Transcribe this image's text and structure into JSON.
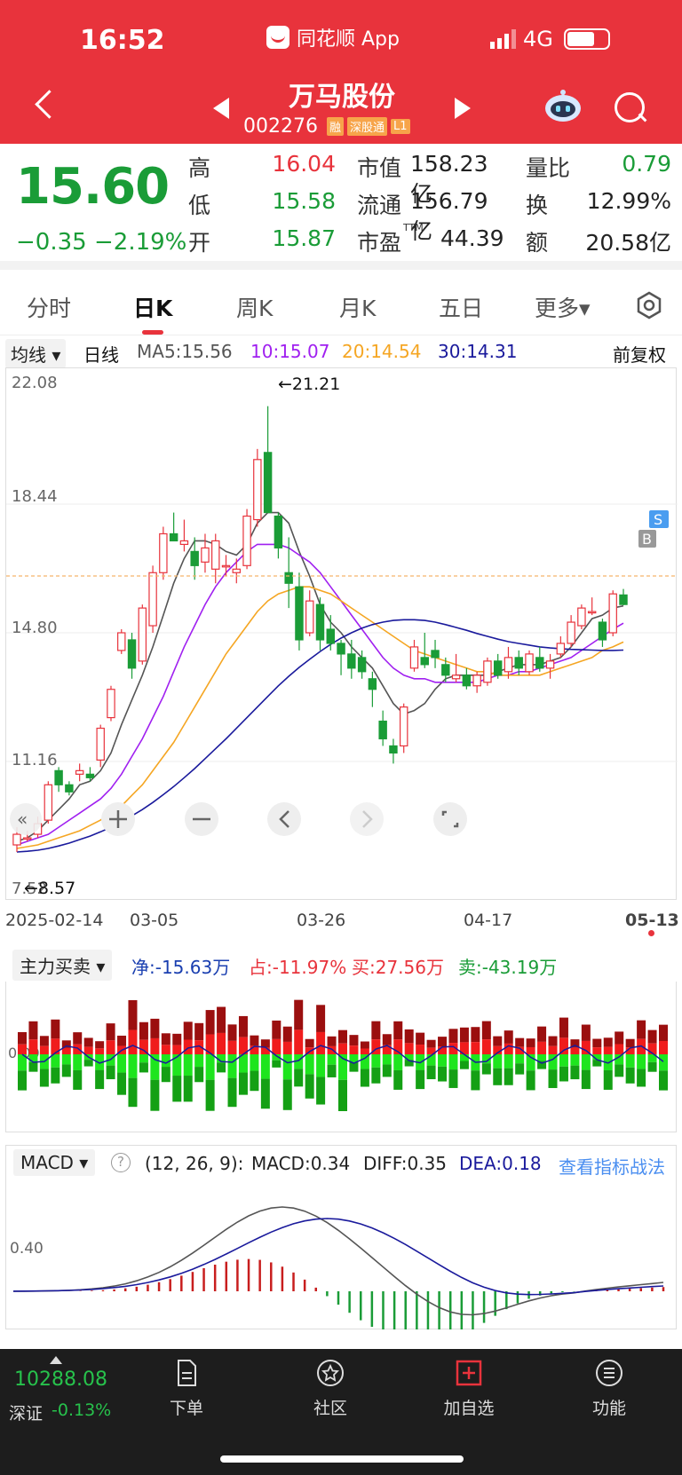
{
  "status": {
    "time": "16:52",
    "app": "同花顺 App",
    "network": "4G"
  },
  "stock": {
    "name": "万马股份",
    "code": "002276",
    "tags": [
      "融",
      "深股通",
      "L1"
    ]
  },
  "quote": {
    "price": "15.60",
    "change": "−0.35",
    "change_pct": "−2.19%",
    "high_label": "高",
    "high": "16.04",
    "low_label": "低",
    "low": "15.58",
    "open_label": "开",
    "open": "15.87",
    "mcap_label": "市值",
    "mcap": "158.23亿",
    "float_label": "流通",
    "float": "156.79亿",
    "pe_label": "市盈",
    "pe_sup": "TTM",
    "pe": "44.39",
    "vr_label": "量比",
    "vr": "0.79",
    "turn_label": "换",
    "turn": "12.99%",
    "amt_label": "额",
    "amt": "20.58亿"
  },
  "tabs": [
    "分时",
    "日K",
    "周K",
    "月K",
    "五日",
    "更多▾"
  ],
  "active_tab": "日K",
  "ma": {
    "selector": "均线 ▾",
    "period": "日线",
    "ma5": "MA5:15.56",
    "ma10": "10:15.07",
    "ma20": "20:14.54",
    "ma30": "30:14.31",
    "adjust": "前复权"
  },
  "kline": {
    "y_labels": [
      "22.08",
      "18.44",
      "14.80",
      "11.16",
      "7.52"
    ],
    "max_note": "←21.21",
    "min_note": "←8.57",
    "markers": [
      "B",
      "S"
    ],
    "dates": [
      "2025-02-14",
      "03-05",
      "03-26",
      "04-17",
      "05-13"
    ]
  },
  "flow": {
    "selector": "主力买卖 ▾",
    "net": "净:-15.63万",
    "share": "占:-11.97%",
    "buy": "买:27.56万",
    "sell": "卖:-43.19万",
    "axis": "0.00"
  },
  "macd": {
    "selector": "MACD ▾",
    "params": "(12, 26, 9):",
    "macd": "MACD:0.34",
    "diff": "DIFF:0.35",
    "dea": "DEA:0.18",
    "link": "查看指标战法",
    "axis": "0.40"
  },
  "bottom": {
    "index_value": "10288.08",
    "index_name": "深证",
    "index_change": "-0.13%",
    "buttons": [
      "下单",
      "社区",
      "加自选",
      "功能"
    ]
  },
  "colors": {
    "up": "#e8333c",
    "down": "#1a9c37",
    "header": "#e8333c",
    "ma5": "#555555",
    "ma10": "#a020f0",
    "ma20": "#f5a623",
    "ma30": "#1a1a9c"
  },
  "chart_data": {
    "type": "candlestick",
    "ylim": [
      7.52,
      22.08
    ],
    "candles": [
      [
        8.8,
        9.3,
        8.6,
        9.1
      ],
      [
        9.0,
        9.2,
        8.9,
        9.0
      ],
      [
        9.1,
        9.6,
        9.0,
        9.4
      ],
      [
        9.5,
        10.6,
        9.4,
        10.5
      ],
      [
        10.9,
        11.0,
        10.3,
        10.5
      ],
      [
        10.5,
        10.6,
        10.2,
        10.3
      ],
      [
        10.8,
        11.1,
        10.6,
        10.9
      ],
      [
        10.8,
        11.0,
        10.6,
        10.7
      ],
      [
        11.2,
        12.2,
        11.0,
        12.1
      ],
      [
        12.4,
        13.3,
        12.3,
        13.2
      ],
      [
        14.3,
        14.9,
        14.2,
        14.8
      ],
      [
        14.6,
        14.8,
        13.5,
        13.8
      ],
      [
        14.0,
        15.6,
        13.9,
        15.5
      ],
      [
        15.0,
        16.7,
        14.8,
        16.5
      ],
      [
        16.5,
        17.8,
        16.3,
        17.6
      ],
      [
        17.6,
        18.2,
        17.4,
        17.4
      ],
      [
        17.3,
        18.0,
        17.1,
        17.4
      ],
      [
        17.1,
        17.5,
        16.3,
        16.7
      ],
      [
        16.8,
        17.6,
        16.5,
        17.2
      ],
      [
        16.6,
        17.6,
        16.2,
        17.4
      ],
      [
        16.7,
        17.0,
        16.4,
        16.7
      ],
      [
        16.5,
        16.9,
        16.2,
        16.6
      ],
      [
        16.7,
        18.3,
        16.6,
        18.1
      ],
      [
        18.0,
        20.0,
        17.8,
        19.7
      ],
      [
        19.9,
        21.21,
        18.2,
        18.2
      ],
      [
        18.1,
        18.2,
        16.9,
        17.2
      ],
      [
        16.5,
        17.5,
        15.5,
        16.2
      ],
      [
        16.1,
        16.5,
        14.3,
        14.6
      ],
      [
        14.8,
        16.0,
        14.7,
        15.7
      ],
      [
        15.6,
        15.8,
        14.3,
        14.6
      ],
      [
        14.9,
        15.3,
        14.3,
        14.5
      ],
      [
        14.5,
        14.6,
        13.6,
        14.2
      ],
      [
        14.2,
        14.6,
        13.5,
        13.8
      ],
      [
        14.1,
        14.3,
        13.5,
        13.7
      ],
      [
        13.5,
        13.7,
        12.7,
        13.2
      ],
      [
        12.3,
        12.6,
        11.6,
        11.8
      ],
      [
        11.6,
        11.8,
        11.1,
        11.4
      ],
      [
        11.6,
        12.8,
        11.4,
        12.7
      ],
      [
        13.8,
        14.6,
        13.7,
        14.4
      ],
      [
        14.1,
        14.8,
        13.8,
        13.9
      ],
      [
        14.3,
        14.6,
        13.8,
        14.1
      ],
      [
        13.9,
        14.1,
        13.4,
        13.6
      ],
      [
        13.5,
        14.2,
        13.4,
        13.6
      ],
      [
        13.6,
        13.8,
        13.2,
        13.3
      ],
      [
        13.3,
        13.7,
        13.1,
        13.6
      ],
      [
        13.4,
        14.1,
        13.3,
        14.0
      ],
      [
        14.0,
        14.2,
        13.5,
        13.6
      ],
      [
        13.7,
        14.4,
        13.5,
        14.1
      ],
      [
        14.1,
        14.3,
        13.6,
        13.8
      ],
      [
        13.7,
        14.3,
        13.6,
        14.2
      ],
      [
        14.1,
        14.4,
        13.7,
        13.8
      ],
      [
        13.8,
        14.2,
        13.5,
        14.0
      ],
      [
        14.2,
        14.7,
        14.1,
        14.5
      ],
      [
        14.5,
        15.3,
        14.4,
        15.1
      ],
      [
        15.0,
        15.6,
        14.9,
        15.5
      ],
      [
        15.4,
        15.8,
        15.3,
        15.4
      ],
      [
        15.1,
        15.2,
        14.4,
        14.6
      ],
      [
        14.8,
        16.0,
        14.7,
        15.9
      ],
      [
        15.87,
        16.04,
        15.58,
        15.6
      ]
    ],
    "ma5": [
      8.9,
      9.0,
      9.2,
      9.5,
      9.8,
      10.1,
      10.5,
      10.6,
      10.9,
      11.4,
      12.2,
      12.9,
      13.6,
      14.4,
      15.3,
      16.2,
      16.9,
      17.4,
      17.4,
      17.3,
      17.1,
      17.0,
      17.3,
      17.9,
      18.2,
      18.2,
      17.9,
      17.1,
      16.4,
      15.6,
      15.1,
      14.8,
      14.4,
      14.1,
      13.8,
      13.3,
      12.8,
      12.5,
      12.6,
      12.8,
      13.2,
      13.5,
      13.6,
      13.6,
      13.6,
      13.6,
      13.7,
      13.8,
      13.9,
      13.9,
      13.9,
      14.0,
      14.1,
      14.4,
      14.8,
      15.2,
      15.3,
      15.5,
      15.56
    ],
    "ma10": [
      8.8,
      8.9,
      9.0,
      9.1,
      9.3,
      9.5,
      9.7,
      9.9,
      10.1,
      10.4,
      10.8,
      11.3,
      11.8,
      12.4,
      13.0,
      13.7,
      14.4,
      15.0,
      15.6,
      16.1,
      16.5,
      16.8,
      17.1,
      17.3,
      17.3,
      17.3,
      17.2,
      17.0,
      16.8,
      16.5,
      16.1,
      15.7,
      15.3,
      14.9,
      14.5,
      14.1,
      13.8,
      13.6,
      13.5,
      13.5,
      13.4,
      13.4,
      13.4,
      13.4,
      13.4,
      13.5,
      13.6,
      13.6,
      13.7,
      13.7,
      13.8,
      13.9,
      14.0,
      14.1,
      14.3,
      14.5,
      14.7,
      14.9,
      15.07
    ],
    "ma20": [
      8.7,
      8.75,
      8.8,
      8.9,
      9.0,
      9.1,
      9.2,
      9.35,
      9.5,
      9.7,
      9.9,
      10.2,
      10.5,
      10.9,
      11.3,
      11.7,
      12.2,
      12.7,
      13.2,
      13.7,
      14.2,
      14.6,
      15.0,
      15.4,
      15.7,
      15.9,
      16.0,
      16.1,
      16.1,
      16.0,
      15.9,
      15.7,
      15.5,
      15.3,
      15.1,
      14.9,
      14.7,
      14.5,
      14.3,
      14.2,
      14.1,
      14.0,
      13.9,
      13.8,
      13.7,
      13.7,
      13.6,
      13.6,
      13.6,
      13.6,
      13.6,
      13.7,
      13.8,
      13.9,
      14.0,
      14.1,
      14.3,
      14.4,
      14.54
    ],
    "ma30": [
      8.6,
      8.62,
      8.65,
      8.7,
      8.77,
      8.85,
      8.95,
      9.05,
      9.17,
      9.3,
      9.45,
      9.62,
      9.8,
      10.0,
      10.22,
      10.45,
      10.7,
      10.96,
      11.24,
      11.52,
      11.8,
      12.1,
      12.4,
      12.7,
      13.0,
      13.3,
      13.57,
      13.82,
      14.05,
      14.27,
      14.47,
      14.65,
      14.8,
      14.93,
      15.03,
      15.1,
      15.15,
      15.17,
      15.17,
      15.15,
      15.1,
      15.03,
      14.95,
      14.87,
      14.78,
      14.7,
      14.62,
      14.55,
      14.5,
      14.45,
      14.4,
      14.37,
      14.35,
      14.33,
      14.32,
      14.31,
      14.3,
      14.3,
      14.31
    ]
  }
}
